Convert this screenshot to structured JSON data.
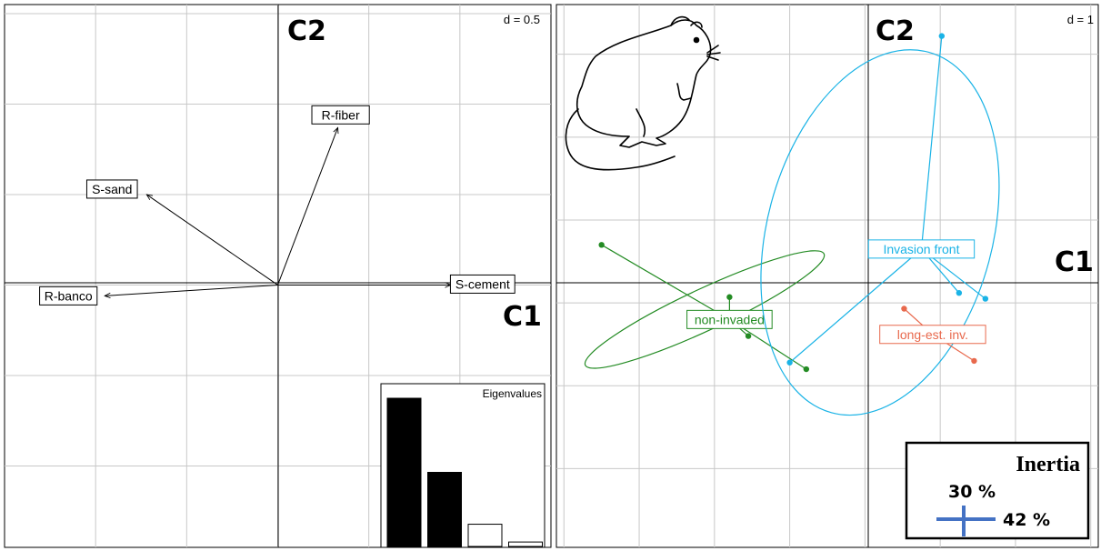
{
  "chart_data": [
    {
      "type": "scatter",
      "title": "",
      "scale_label": "d = 0.5",
      "axis_labels": {
        "x": "C1",
        "y": "C2"
      },
      "xlim": [
        -1.5,
        1.5
      ],
      "ylim": [
        -1.45,
        1.55
      ],
      "grid": true,
      "arrows": [
        {
          "label": "R-fiber",
          "x": 0.33,
          "y": 0.87
        },
        {
          "label": "S-sand",
          "x": -0.72,
          "y": 0.5
        },
        {
          "label": "S-cement",
          "x": 0.95,
          "y": 0.0
        },
        {
          "label": "R-banco",
          "x": -0.95,
          "y": -0.06
        }
      ],
      "inset": {
        "title": "Eigenvalues",
        "values": [
          1.0,
          0.5,
          0.15,
          0.03
        ],
        "filled": [
          true,
          true,
          false,
          false
        ]
      }
    },
    {
      "type": "scatter",
      "title": "",
      "scale_label": "d = 1",
      "axis_labels": {
        "x": "C1",
        "y": "C2"
      },
      "xlim": [
        -4.1,
        3.1
      ],
      "ylim": [
        -2.95,
        3.6
      ],
      "grid": true,
      "groups": [
        {
          "name": "non-invaded",
          "color": "#238b23",
          "centroid": [
            -1.8,
            -0.2
          ],
          "points": [
            [
              -3.5,
              0.7
            ],
            [
              -1.8,
              0.07
            ],
            [
              -1.55,
              -0.4
            ],
            [
              -0.78,
              -0.8
            ]
          ],
          "ellipse": {
            "cx": -2.13,
            "cy": -0.08,
            "rx": 1.75,
            "ry": 0.25,
            "angle": -25
          }
        },
        {
          "name": "Invasion front",
          "color": "#1ab3e6",
          "centroid": [
            0.75,
            0.65
          ],
          "points": [
            [
              1.02,
              3.22
            ],
            [
              1.25,
              0.12
            ],
            [
              1.6,
              0.05
            ],
            [
              -1.0,
              -0.72
            ]
          ],
          "ellipse": {
            "cx": 0.2,
            "cy": 0.85,
            "rx": 2.48,
            "ry": 1.36,
            "angle": -75
          }
        },
        {
          "name": "long-est. inv.",
          "color": "#e8694d",
          "centroid": [
            0.9,
            -0.38
          ],
          "points": [
            [
              0.52,
              -0.07
            ],
            [
              1.45,
              -0.7
            ]
          ],
          "ellipse": null
        }
      ],
      "inertia_legend": {
        "title": "Inertia",
        "axis1": "42 %",
        "axis2": "30 %"
      }
    }
  ]
}
